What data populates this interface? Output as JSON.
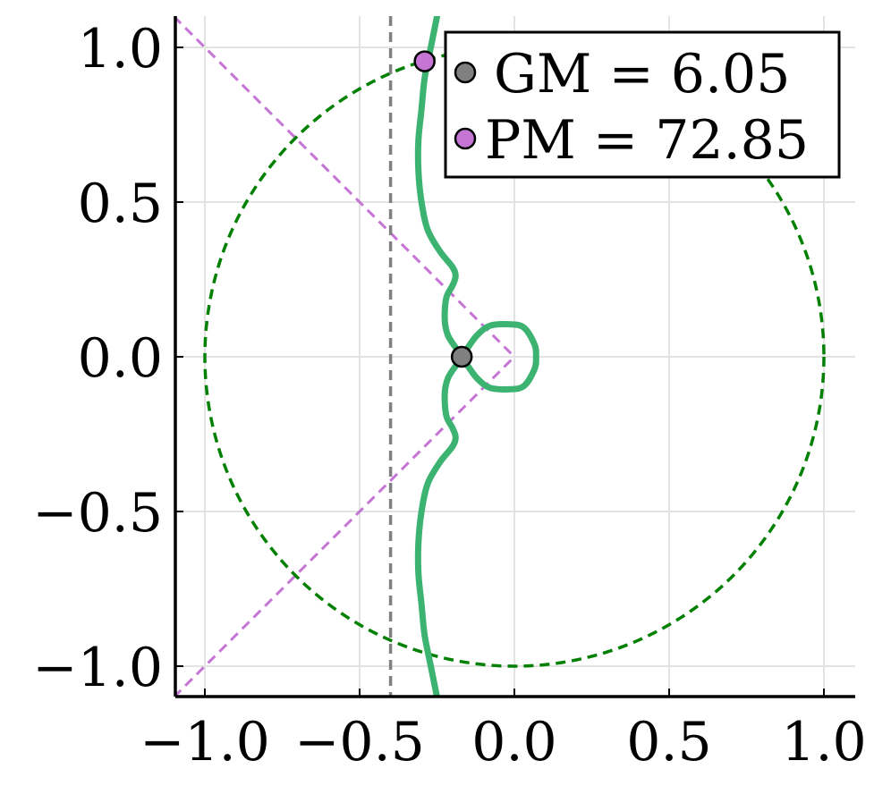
{
  "chart_data": {
    "type": "line",
    "title": "",
    "xlabel": "",
    "ylabel": "",
    "xlim": [
      -1.1,
      1.1
    ],
    "ylim": [
      -1.1,
      1.1
    ],
    "grid": true,
    "legend_position": "top-right",
    "x_ticks": [
      {
        "value": -1.0,
        "label": "−1.0"
      },
      {
        "value": -0.5,
        "label": "−0.5"
      },
      {
        "value": 0.0,
        "label": "0.0"
      },
      {
        "value": 0.5,
        "label": "0.5"
      },
      {
        "value": 1.0,
        "label": "1.0"
      }
    ],
    "y_ticks": [
      {
        "value": -1.0,
        "label": "−1.0"
      },
      {
        "value": -0.5,
        "label": "−0.5"
      },
      {
        "value": 0.0,
        "label": "0.0"
      },
      {
        "value": 0.5,
        "label": "0.5"
      },
      {
        "value": 1.0,
        "label": "1.0"
      }
    ],
    "nyquist_curve": {
      "color": "#3cb371",
      "points": [
        [
          -0.25,
          -1.1
        ],
        [
          -0.27,
          -1.0
        ],
        [
          -0.29,
          -0.9
        ],
        [
          -0.3,
          -0.8
        ],
        [
          -0.31,
          -0.7
        ],
        [
          -0.31,
          -0.6
        ],
        [
          -0.3,
          -0.5
        ],
        [
          -0.28,
          -0.41
        ],
        [
          -0.24,
          -0.34
        ],
        [
          -0.2,
          -0.29
        ],
        [
          -0.19,
          -0.26
        ],
        [
          -0.2,
          -0.23
        ],
        [
          -0.22,
          -0.19
        ],
        [
          -0.225,
          -0.12
        ],
        [
          -0.215,
          -0.07
        ],
        [
          -0.19,
          -0.03
        ],
        [
          -0.17,
          0.0
        ],
        [
          -0.15,
          0.03
        ],
        [
          -0.12,
          0.07
        ],
        [
          -0.08,
          0.1
        ],
        [
          -0.02,
          0.105
        ],
        [
          0.03,
          0.095
        ],
        [
          0.065,
          0.04
        ],
        [
          0.07,
          0.0
        ],
        [
          0.065,
          -0.04
        ],
        [
          0.03,
          -0.095
        ],
        [
          -0.02,
          -0.105
        ],
        [
          -0.08,
          -0.1
        ],
        [
          -0.12,
          -0.07
        ],
        [
          -0.15,
          -0.03
        ],
        [
          -0.17,
          0.0
        ],
        [
          -0.19,
          0.03
        ],
        [
          -0.215,
          0.07
        ],
        [
          -0.225,
          0.12
        ],
        [
          -0.22,
          0.19
        ],
        [
          -0.2,
          0.23
        ],
        [
          -0.19,
          0.26
        ],
        [
          -0.2,
          0.29
        ],
        [
          -0.24,
          0.34
        ],
        [
          -0.28,
          0.41
        ],
        [
          -0.3,
          0.5
        ],
        [
          -0.31,
          0.6
        ],
        [
          -0.31,
          0.7
        ],
        [
          -0.3,
          0.8
        ],
        [
          -0.29,
          0.9
        ],
        [
          -0.27,
          1.0
        ],
        [
          -0.25,
          1.1
        ]
      ]
    },
    "unit_circle": {
      "radius": 1.0,
      "color": "#008000",
      "style": "dashed"
    },
    "phase_margin_lines": {
      "color": "#c576d5",
      "style": "dashed",
      "segments": [
        [
          [
            -1.1,
            1.1
          ],
          [
            0.0,
            0.0
          ]
        ],
        [
          [
            -1.1,
            -1.1
          ],
          [
            0.0,
            0.0
          ]
        ]
      ]
    },
    "gain_margin_line": {
      "x": -0.4,
      "color": "#808080",
      "style": "dashed"
    },
    "series": [
      {
        "name": "GM = 6.05",
        "x": -0.17,
        "y": 0.0,
        "color": "#808080"
      },
      {
        "name": "PM = 72.85",
        "x": -0.29,
        "y": 0.955,
        "color": "#c576d5"
      }
    ]
  }
}
